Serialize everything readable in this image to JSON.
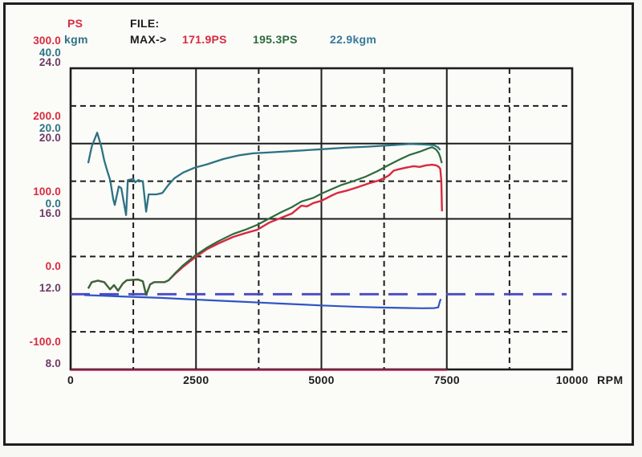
{
  "header": {
    "power_unit": "PS",
    "torque_unit": "kgm",
    "file_label": "FILE:",
    "max_label": "MAX->",
    "max_values": [
      {
        "text": "171.9PS",
        "color": "red"
      },
      {
        "text": "195.3PS",
        "color": "green"
      },
      {
        "text": "22.9kgm",
        "color": "steel"
      }
    ]
  },
  "colors": {
    "red": "#d82a3e",
    "green": "#2d6b3c",
    "teal": "#2d7283",
    "steel": "#35799b",
    "purple": "#6d3a67",
    "blue": "#2f55c4",
    "blueDash": "#4a49c4",
    "magenta": "#b92256",
    "grid": "#1d1d1d",
    "text": "#1d1d1d"
  },
  "chart_data": {
    "type": "line",
    "title": "",
    "xlabel": "RPM",
    "x_range": [
      0,
      10000
    ],
    "x_tick_labels": [
      "0",
      "2500",
      "5000",
      "7500",
      "10000"
    ],
    "grid": "solid lines every 2500 RPM and every 2 divisions; dashed midlines",
    "legend_position": "top-left",
    "axes": {
      "power": {
        "unit": "PS",
        "top": 300,
        "bottom": -100
      },
      "torque": {
        "unit": "kgm",
        "top": 40,
        "bottom": -40
      },
      "aux": {
        "unit": "",
        "top": 24,
        "bottom": 8
      }
    },
    "y_ticks": [
      {
        "axis": "power",
        "color": "red",
        "dy": -42,
        "labels": [
          "300.0",
          "200.0",
          "100.0",
          "0.0",
          "-100.0"
        ]
      },
      {
        "axis": "torque",
        "color": "teal",
        "dy": -27,
        "labels": [
          "40.0",
          "20.0",
          "0.0"
        ]
      },
      {
        "axis": "aux",
        "color": "purple",
        "dy": -15,
        "labels": [
          "24.0",
          "20.0",
          "16.0",
          "12.0",
          "8.0"
        ]
      }
    ],
    "max_values": {
      "power_run1_ps": 171.9,
      "power_run2_ps": 195.3,
      "torque_kgm": 22.9
    },
    "series": [
      {
        "name": "baseline_trace",
        "axis": "aux",
        "color": "magenta",
        "width": 2,
        "points": [
          [
            0,
            7.97
          ],
          [
            7500,
            7.97
          ]
        ]
      },
      {
        "name": "reference_line_12",
        "axis": "aux",
        "color": "blueDash",
        "width": 2.8,
        "dash": "24 12",
        "points": [
          [
            0,
            12
          ],
          [
            9890,
            12
          ]
        ]
      },
      {
        "name": "battery_voltage",
        "axis": "aux",
        "color": "blue",
        "width": 2.2,
        "points": [
          [
            270,
            11.95
          ],
          [
            600,
            11.92
          ],
          [
            1000,
            11.88
          ],
          [
            1400,
            11.84
          ],
          [
            1800,
            11.8
          ],
          [
            2200,
            11.75
          ],
          [
            2600,
            11.7
          ],
          [
            3000,
            11.65
          ],
          [
            3400,
            11.6
          ],
          [
            3800,
            11.55
          ],
          [
            4200,
            11.5
          ],
          [
            4600,
            11.45
          ],
          [
            5000,
            11.4
          ],
          [
            5400,
            11.36
          ],
          [
            5800,
            11.32
          ],
          [
            6200,
            11.29
          ],
          [
            6600,
            11.27
          ],
          [
            7000,
            11.25
          ],
          [
            7250,
            11.26
          ],
          [
            7330,
            11.3
          ],
          [
            7360,
            11.6
          ],
          [
            7380,
            11.74
          ]
        ]
      },
      {
        "name": "torque_kgm",
        "axis": "torque",
        "color": "teal",
        "width": 2.3,
        "points": [
          [
            350,
            14.8
          ],
          [
            420,
            19.2
          ],
          [
            530,
            22.9
          ],
          [
            610,
            19.3
          ],
          [
            670,
            15.5
          ],
          [
            730,
            12.8
          ],
          [
            790,
            10.2
          ],
          [
            850,
            5.2
          ],
          [
            880,
            3.7
          ],
          [
            960,
            8.6
          ],
          [
            1010,
            8.2
          ],
          [
            1105,
            1.0
          ],
          [
            1140,
            10.3
          ],
          [
            1250,
            10.6
          ],
          [
            1290,
            9.7
          ],
          [
            1350,
            10.3
          ],
          [
            1440,
            9.9
          ],
          [
            1505,
            1.9
          ],
          [
            1555,
            6.5
          ],
          [
            1715,
            6.5
          ],
          [
            1830,
            6.9
          ],
          [
            1955,
            9.1
          ],
          [
            2070,
            10.8
          ],
          [
            2245,
            12.3
          ],
          [
            2470,
            13.6
          ],
          [
            2725,
            14.5
          ],
          [
            3045,
            15.9
          ],
          [
            3365,
            16.9
          ],
          [
            3640,
            17.4
          ],
          [
            4040,
            17.7
          ],
          [
            4520,
            18.1
          ],
          [
            5000,
            18.5
          ],
          [
            5480,
            18.9
          ],
          [
            5960,
            19.2
          ],
          [
            6440,
            19.6
          ],
          [
            6760,
            19.9
          ],
          [
            7000,
            19.8
          ],
          [
            7240,
            19.6
          ],
          [
            7325,
            19.0
          ],
          [
            7370,
            18.3
          ]
        ]
      },
      {
        "name": "power_ps_run1",
        "axis": "power",
        "color": "red",
        "width": 2.4,
        "points": [
          [
            350,
            7.5
          ],
          [
            420,
            16
          ],
          [
            545,
            18
          ],
          [
            670,
            16
          ],
          [
            785,
            6.5
          ],
          [
            865,
            12
          ],
          [
            945,
            4.5
          ],
          [
            1040,
            14
          ],
          [
            1120,
            18.5
          ],
          [
            1345,
            19.5
          ],
          [
            1440,
            17
          ],
          [
            1505,
            -1
          ],
          [
            1585,
            13
          ],
          [
            1665,
            16
          ],
          [
            1875,
            16
          ],
          [
            1955,
            18.5
          ],
          [
            2085,
            27
          ],
          [
            2245,
            36.5
          ],
          [
            2485,
            49
          ],
          [
            2725,
            60
          ],
          [
            2950,
            67.5
          ],
          [
            3240,
            76
          ],
          [
            3480,
            81
          ],
          [
            3720,
            85.5
          ],
          [
            3960,
            95
          ],
          [
            4200,
            101.5
          ],
          [
            4410,
            107
          ],
          [
            4600,
            117.5
          ],
          [
            4710,
            116.5
          ],
          [
            4840,
            121
          ],
          [
            5000,
            124
          ],
          [
            5190,
            130.5
          ],
          [
            5320,
            134.5
          ],
          [
            5530,
            138
          ],
          [
            5720,
            142
          ],
          [
            5960,
            147.5
          ],
          [
            6120,
            150.5
          ],
          [
            6250,
            154
          ],
          [
            6350,
            158
          ],
          [
            6440,
            164
          ],
          [
            6520,
            165.5
          ],
          [
            6680,
            168
          ],
          [
            6840,
            170
          ],
          [
            6960,
            169
          ],
          [
            7080,
            171
          ],
          [
            7210,
            171.9
          ],
          [
            7290,
            171
          ],
          [
            7340,
            169
          ],
          [
            7370,
            166.5
          ],
          [
            7390,
            151
          ],
          [
            7405,
            110
          ]
        ]
      },
      {
        "name": "power_ps_run2",
        "axis": "power",
        "color": "green",
        "width": 2.2,
        "points": [
          [
            350,
            7.5
          ],
          [
            420,
            16
          ],
          [
            545,
            18
          ],
          [
            670,
            16
          ],
          [
            785,
            6.5
          ],
          [
            865,
            12
          ],
          [
            945,
            4.5
          ],
          [
            1040,
            14
          ],
          [
            1120,
            18.5
          ],
          [
            1345,
            19.5
          ],
          [
            1440,
            17
          ],
          [
            1505,
            -1
          ],
          [
            1585,
            13
          ],
          [
            1665,
            16
          ],
          [
            1875,
            16
          ],
          [
            1955,
            18.5
          ],
          [
            2085,
            28
          ],
          [
            2245,
            38.5
          ],
          [
            2485,
            51.5
          ],
          [
            2725,
            62
          ],
          [
            2950,
            70.5
          ],
          [
            3240,
            80
          ],
          [
            3480,
            85.5
          ],
          [
            3720,
            92
          ],
          [
            3960,
            100.5
          ],
          [
            4200,
            109
          ],
          [
            4410,
            115.5
          ],
          [
            4600,
            123
          ],
          [
            4840,
            128
          ],
          [
            5000,
            133.5
          ],
          [
            5190,
            139
          ],
          [
            5400,
            145
          ],
          [
            5610,
            149.5
          ],
          [
            5880,
            156
          ],
          [
            6120,
            163.5
          ],
          [
            6330,
            171
          ],
          [
            6550,
            178.5
          ],
          [
            6760,
            185
          ],
          [
            6950,
            189
          ],
          [
            7130,
            193.5
          ],
          [
            7210,
            195.3
          ],
          [
            7290,
            192
          ],
          [
            7340,
            187
          ],
          [
            7370,
            182
          ],
          [
            7400,
            174
          ]
        ]
      }
    ]
  }
}
